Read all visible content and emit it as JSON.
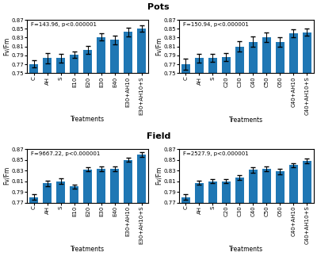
{
  "chart_data": [
    {
      "type": "bar",
      "title": "Pots",
      "xlabel": "Treatments",
      "ylabel": "Fv/Fm",
      "annotations": [
        "F=143.96, p<0.000001"
      ],
      "categories": [
        "C",
        "AH",
        "S",
        "E10",
        "E20",
        "E30",
        "E40",
        "E30+AH10",
        "E30+AH10+S"
      ],
      "values": [
        0.771,
        0.784,
        0.784,
        0.791,
        0.803,
        0.831,
        0.825,
        0.843,
        0.851
      ],
      "errors": [
        0.008,
        0.012,
        0.01,
        0.007,
        0.009,
        0.008,
        0.01,
        0.01,
        0.007
      ],
      "ylim": [
        0.75,
        0.87
      ],
      "yticks": [
        0.75,
        0.77,
        0.79,
        0.81,
        0.83,
        0.85,
        0.87
      ],
      "grid": false
    },
    {
      "type": "bar",
      "xlabel": "Treatments",
      "ylabel": "Fv/Fm",
      "annotations": [
        "F=150.94, p<0.000001"
      ],
      "categories": [
        "C",
        "AH",
        "S",
        "C20",
        "C30",
        "C40",
        "C50",
        "C60",
        "C40+AH10",
        "C40+AH10+S"
      ],
      "values": [
        0.77,
        0.784,
        0.784,
        0.786,
        0.81,
        0.821,
        0.831,
        0.82,
        0.84,
        0.842
      ],
      "errors": [
        0.012,
        0.01,
        0.009,
        0.009,
        0.012,
        0.011,
        0.01,
        0.01,
        0.009,
        0.008
      ],
      "ylim": [
        0.75,
        0.87
      ],
      "yticks": [
        0.75,
        0.77,
        0.79,
        0.81,
        0.83,
        0.85,
        0.87
      ],
      "grid": false
    },
    {
      "type": "bar",
      "title": "Field",
      "xlabel": "Treatments",
      "ylabel": "Fv/Fm",
      "annotations": [
        "F=9667.22, p<0.000001"
      ],
      "categories": [
        "C",
        "AH",
        "S",
        "E10",
        "E20",
        "E30",
        "E40",
        "E30+AH10",
        "E30+AH10+S"
      ],
      "values": [
        0.78,
        0.806,
        0.81,
        0.8,
        0.832,
        0.833,
        0.833,
        0.85,
        0.86
      ],
      "errors": [
        0.005,
        0.005,
        0.005,
        0.004,
        0.004,
        0.004,
        0.004,
        0.004,
        0.004
      ],
      "ylim": [
        0.77,
        0.87
      ],
      "yticks": [
        0.77,
        0.79,
        0.81,
        0.83,
        0.85,
        0.87
      ],
      "grid": false
    },
    {
      "type": "bar",
      "xlabel": "Treatments",
      "ylabel": "Fv/Fm",
      "annotations": [
        "F=2527.9, p<0.000001"
      ],
      "categories": [
        "C",
        "AH",
        "S",
        "C20",
        "C30",
        "C40",
        "C50",
        "C60",
        "C40+AH10",
        "C40+AH10+S"
      ],
      "values": [
        0.78,
        0.807,
        0.81,
        0.81,
        0.817,
        0.831,
        0.833,
        0.828,
        0.84,
        0.848
      ],
      "errors": [
        0.005,
        0.004,
        0.004,
        0.004,
        0.004,
        0.005,
        0.005,
        0.005,
        0.004,
        0.004
      ],
      "ylim": [
        0.77,
        0.87
      ],
      "yticks": [
        0.77,
        0.79,
        0.81,
        0.83,
        0.85,
        0.87
      ],
      "grid": false
    }
  ]
}
